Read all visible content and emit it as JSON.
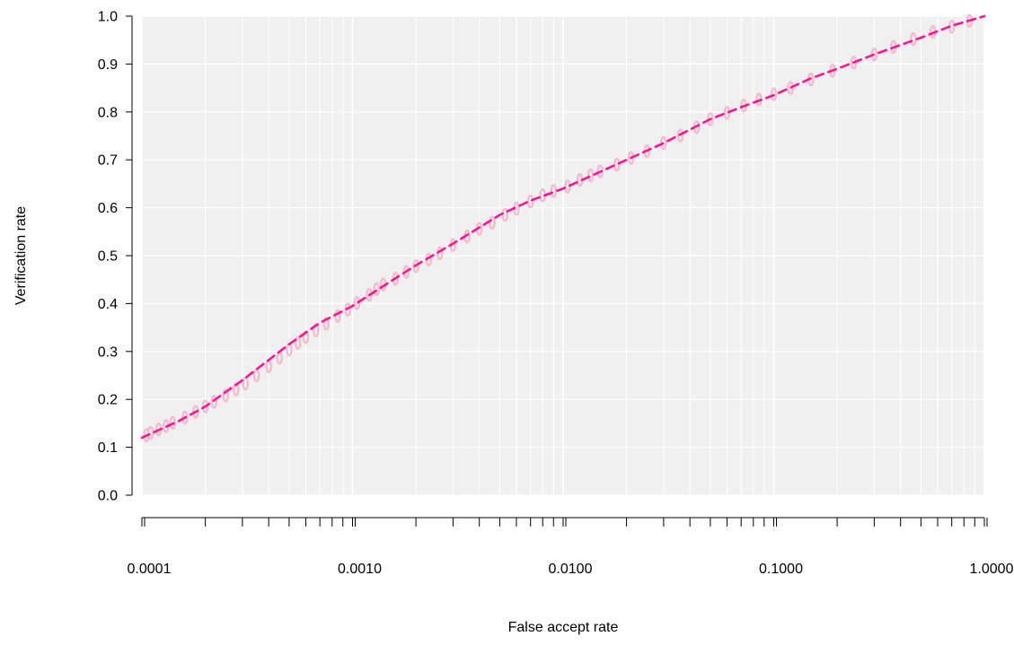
{
  "chart_data": {
    "type": "line",
    "title": "",
    "xlabel": "False accept rate",
    "ylabel": "Verification rate",
    "x_scale": "log",
    "xlim": [
      0.0001,
      1.0
    ],
    "ylim": [
      0.0,
      1.0
    ],
    "grid": true,
    "x_tick_labels": [
      "0.0001",
      "0.0010",
      "0.0100",
      "0.1000",
      "1.0000"
    ],
    "x_tick_values": [
      0.0001,
      0.001,
      0.01,
      0.1,
      1.0
    ],
    "y_tick_labels": [
      "0.0",
      "0.1",
      "0.2",
      "0.3",
      "0.4",
      "0.5",
      "0.6",
      "0.7",
      "0.8",
      "0.9",
      "1.0"
    ],
    "y_tick_values": [
      0.0,
      0.1,
      0.2,
      0.3,
      0.4,
      0.5,
      0.6,
      0.7,
      0.8,
      0.9,
      1.0
    ],
    "colors": {
      "panel_background": "#f0f0f0",
      "grid": "#ffffff",
      "band": "#f4b6c6",
      "line": "#ff1493"
    },
    "series": [
      {
        "style": "dashed",
        "x": [
          0.0001,
          0.00015,
          0.0002,
          0.0003,
          0.0005,
          0.0007,
          0.001,
          0.0015,
          0.002,
          0.003,
          0.005,
          0.007,
          0.01,
          0.015,
          0.02,
          0.03,
          0.05,
          0.07,
          0.1,
          0.15,
          0.2,
          0.3,
          0.5,
          0.7,
          1.0
        ],
        "y": [
          0.12,
          0.155,
          0.185,
          0.24,
          0.315,
          0.36,
          0.395,
          0.445,
          0.48,
          0.525,
          0.585,
          0.615,
          0.64,
          0.675,
          0.7,
          0.735,
          0.785,
          0.81,
          0.835,
          0.87,
          0.89,
          0.92,
          0.955,
          0.98,
          1.0
        ]
      }
    ],
    "band_points": [
      {
        "x": 0.000105,
        "y": 0.125
      },
      {
        "x": 0.00011,
        "y": 0.13
      },
      {
        "x": 0.00012,
        "y": 0.137
      },
      {
        "x": 0.00013,
        "y": 0.144
      },
      {
        "x": 0.00014,
        "y": 0.151
      },
      {
        "x": 0.00016,
        "y": 0.162
      },
      {
        "x": 0.00018,
        "y": 0.174
      },
      {
        "x": 0.0002,
        "y": 0.185
      },
      {
        "x": 0.00022,
        "y": 0.195
      },
      {
        "x": 0.00025,
        "y": 0.208
      },
      {
        "x": 0.00028,
        "y": 0.221
      },
      {
        "x": 0.00031,
        "y": 0.233
      },
      {
        "x": 0.00035,
        "y": 0.25
      },
      {
        "x": 0.0004,
        "y": 0.269
      },
      {
        "x": 0.00045,
        "y": 0.287
      },
      {
        "x": 0.0005,
        "y": 0.304
      },
      {
        "x": 0.00055,
        "y": 0.318
      },
      {
        "x": 0.0006,
        "y": 0.33
      },
      {
        "x": 0.00067,
        "y": 0.344
      },
      {
        "x": 0.00075,
        "y": 0.358
      },
      {
        "x": 0.00085,
        "y": 0.374
      },
      {
        "x": 0.00095,
        "y": 0.387
      },
      {
        "x": 0.00105,
        "y": 0.401
      },
      {
        "x": 0.0012,
        "y": 0.418
      },
      {
        "x": 0.0013,
        "y": 0.43
      },
      {
        "x": 0.0014,
        "y": 0.44
      },
      {
        "x": 0.0016,
        "y": 0.452
      },
      {
        "x": 0.0018,
        "y": 0.466
      },
      {
        "x": 0.002,
        "y": 0.478
      },
      {
        "x": 0.0023,
        "y": 0.492
      },
      {
        "x": 0.0026,
        "y": 0.505
      },
      {
        "x": 0.003,
        "y": 0.522
      },
      {
        "x": 0.0035,
        "y": 0.54
      },
      {
        "x": 0.004,
        "y": 0.556
      },
      {
        "x": 0.0046,
        "y": 0.569
      },
      {
        "x": 0.0053,
        "y": 0.585
      },
      {
        "x": 0.006,
        "y": 0.598
      },
      {
        "x": 0.007,
        "y": 0.613
      },
      {
        "x": 0.008,
        "y": 0.626
      },
      {
        "x": 0.009,
        "y": 0.635
      },
      {
        "x": 0.0105,
        "y": 0.644
      },
      {
        "x": 0.012,
        "y": 0.658
      },
      {
        "x": 0.0135,
        "y": 0.668
      },
      {
        "x": 0.015,
        "y": 0.676
      },
      {
        "x": 0.018,
        "y": 0.69
      },
      {
        "x": 0.021,
        "y": 0.704
      },
      {
        "x": 0.025,
        "y": 0.718
      },
      {
        "x": 0.03,
        "y": 0.735
      },
      {
        "x": 0.036,
        "y": 0.751
      },
      {
        "x": 0.043,
        "y": 0.768
      },
      {
        "x": 0.05,
        "y": 0.785
      },
      {
        "x": 0.06,
        "y": 0.798
      },
      {
        "x": 0.072,
        "y": 0.813
      },
      {
        "x": 0.085,
        "y": 0.826
      },
      {
        "x": 0.1,
        "y": 0.837
      },
      {
        "x": 0.12,
        "y": 0.85
      },
      {
        "x": 0.15,
        "y": 0.868
      },
      {
        "x": 0.19,
        "y": 0.886
      },
      {
        "x": 0.24,
        "y": 0.903
      },
      {
        "x": 0.3,
        "y": 0.92
      },
      {
        "x": 0.37,
        "y": 0.936
      },
      {
        "x": 0.46,
        "y": 0.952
      },
      {
        "x": 0.57,
        "y": 0.967
      },
      {
        "x": 0.7,
        "y": 0.978
      },
      {
        "x": 0.85,
        "y": 0.99
      }
    ]
  }
}
